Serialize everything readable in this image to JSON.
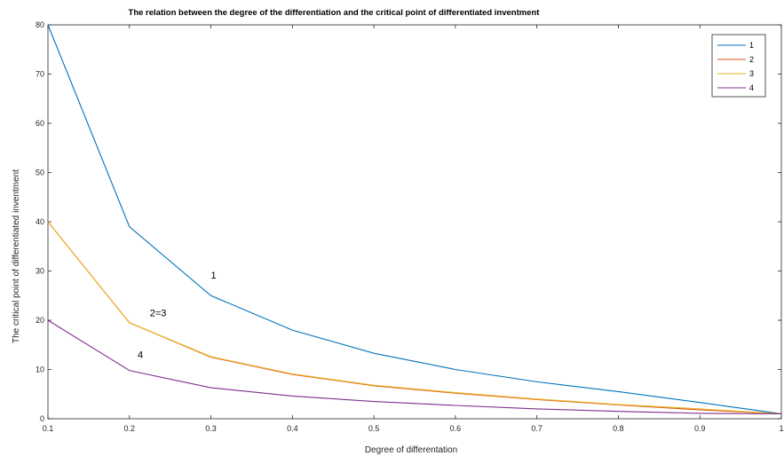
{
  "chart_data": {
    "type": "line",
    "title": "The relation between the degree of the differentiation and the critical point of differentiated inventment",
    "xlabel": "Degree of differentation",
    "ylabel": "The critical point of differentiated inventment",
    "xlim": [
      0.1,
      1
    ],
    "ylim": [
      0,
      80
    ],
    "xticks": [
      "0.1",
      "0.2",
      "0.3",
      "0.4",
      "0.5",
      "0.6",
      "0.7",
      "0.8",
      "0.9",
      "1"
    ],
    "yticks": [
      "0",
      "10",
      "20",
      "30",
      "40",
      "50",
      "60",
      "70",
      "80"
    ],
    "grid": false,
    "legend_position": "top-right",
    "x": [
      0.1,
      0.2,
      0.3,
      0.4,
      0.5,
      0.6,
      0.7,
      0.8,
      0.9,
      1.0
    ],
    "series": [
      {
        "name": "1",
        "color": "#0072BD",
        "values": [
          80,
          39,
          25,
          18,
          13.3,
          10,
          7.5,
          5.5,
          3.3,
          1
        ]
      },
      {
        "name": "2",
        "color": "#D95319",
        "values": [
          40,
          19.5,
          12.5,
          9,
          6.7,
          5.2,
          3.9,
          2.8,
          1.8,
          1
        ]
      },
      {
        "name": "3",
        "color": "#EDB120",
        "values": [
          40,
          19.5,
          12.6,
          9.1,
          6.8,
          5.3,
          4.0,
          2.9,
          2.0,
          1
        ]
      },
      {
        "name": "4",
        "color": "#7E2F8E",
        "values": [
          20,
          9.8,
          6.3,
          4.6,
          3.5,
          2.7,
          2.0,
          1.5,
          1.1,
          1
        ]
      }
    ],
    "annotations": [
      {
        "text": "1",
        "x": 0.3,
        "y": 28.5
      },
      {
        "text": "2=3",
        "x": 0.225,
        "y": 20.8
      },
      {
        "text": "4",
        "x": 0.21,
        "y": 12.3
      }
    ]
  }
}
